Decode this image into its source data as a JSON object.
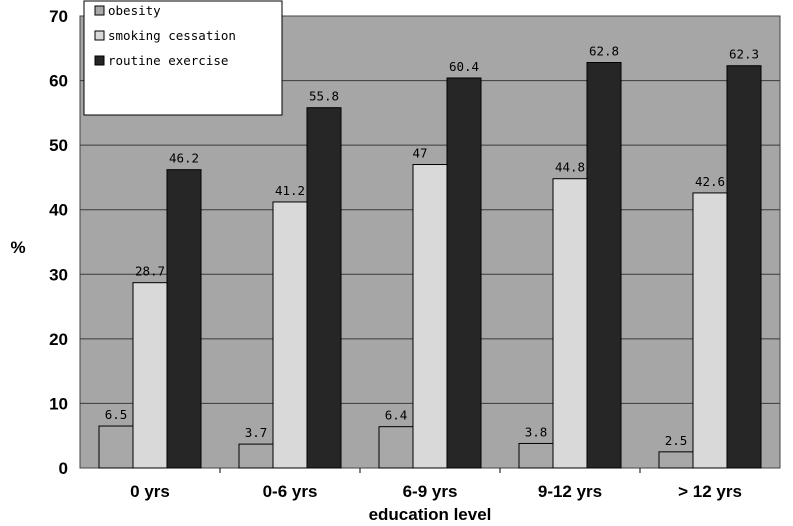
{
  "chart_data": {
    "type": "bar",
    "title": "",
    "xlabel": "education level",
    "ylabel": "%",
    "ylim": [
      0,
      70
    ],
    "yticks": [
      0,
      10,
      20,
      30,
      40,
      50,
      60,
      70
    ],
    "grid": true,
    "legend_position": "top-left",
    "categories": [
      "0 yrs",
      "0-6 yrs",
      "6-9 yrs",
      "9-12 yrs",
      "> 12 yrs"
    ],
    "series": [
      {
        "name": "obesity",
        "values": [
          6.5,
          3.7,
          6.4,
          3.8,
          2.5
        ],
        "labels": [
          "6.5",
          "3.7",
          "6.4",
          "3.8",
          "2.5"
        ],
        "color": "#a8a8a8"
      },
      {
        "name": "smoking cessation",
        "values": [
          28.7,
          41.2,
          47,
          44.8,
          42.6
        ],
        "labels": [
          "28.7",
          "41.2",
          "47",
          "44.8",
          "42.6"
        ],
        "color": "#d9d9d9"
      },
      {
        "name": "routine exercise",
        "values": [
          46.2,
          55.8,
          60.4,
          62.8,
          62.3
        ],
        "labels": [
          "46.2",
          "55.8",
          "60.4",
          "62.8",
          "62.3"
        ],
        "color": "#262626"
      }
    ],
    "colors": {
      "plot_background": "#a6a6a6",
      "gridline": "#3a3a3a"
    }
  }
}
